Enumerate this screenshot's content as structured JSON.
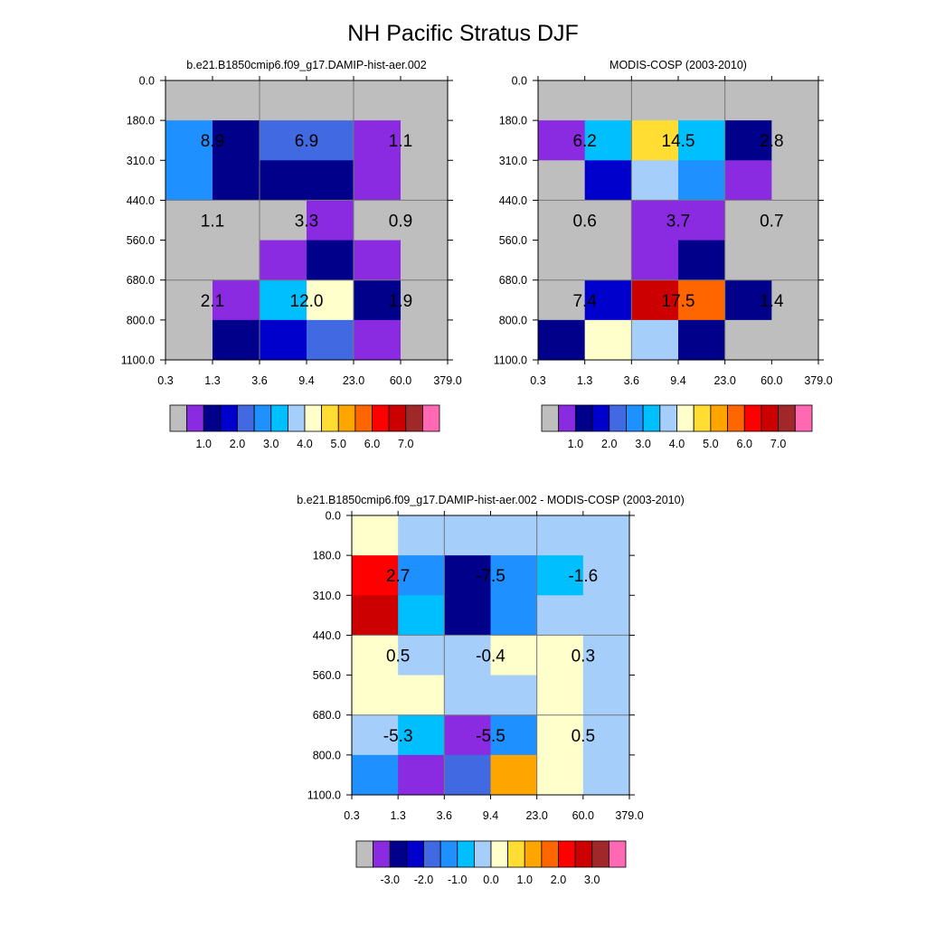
{
  "title": "NH Pacific Stratus DJF",
  "palette": {
    "gray": "#BEBEBE",
    "c_violet": "#8A2BE2",
    "c_navy": "#00008B",
    "c_blue": "#0000CD",
    "c_royal": "#4169E1",
    "c_dodger": "#1E90FF",
    "c_deepsky": "#00BFFF",
    "c_light": "#A6CEFB",
    "c_cream": "#FFFFCC",
    "c_gold": "#FFDD33",
    "c_orange": "#FFA500",
    "c_darkorange": "#FF6600",
    "c_red": "#FF0000",
    "c_darkred": "#CC0000",
    "c_brown": "#A02828",
    "c_pink": "#FF69B4",
    "grid_line": "#777777"
  },
  "chart_data": [
    {
      "type": "heatmap",
      "title": "b.e21.B1850cmip6.f09_g17.DAMIP-hist-aer.002",
      "x_ticks": [
        "0.3",
        "1.3",
        "3.6",
        "9.4",
        "23.0",
        "60.0",
        "379.0"
      ],
      "y_ticks": [
        "0.0",
        "180.0",
        "310.0",
        "440.0",
        "560.0",
        "680.0",
        "800.0",
        "1100.0"
      ],
      "cells": [
        [
          "gray",
          "gray",
          "gray",
          "gray",
          "gray",
          "gray"
        ],
        [
          "c_dodger",
          "c_navy",
          "c_royal",
          "c_royal",
          "c_violet",
          "gray"
        ],
        [
          "c_dodger",
          "c_navy",
          "c_navy",
          "c_navy",
          "c_violet",
          "gray"
        ],
        [
          "gray",
          "gray",
          "gray",
          "c_violet",
          "gray",
          "gray"
        ],
        [
          "gray",
          "gray",
          "c_violet",
          "c_navy",
          "c_violet",
          "gray"
        ],
        [
          "gray",
          "c_violet",
          "c_deepsky",
          "c_cream",
          "c_navy",
          "gray"
        ],
        [
          "gray",
          "c_navy",
          "c_blue",
          "c_royal",
          "c_violet",
          "gray"
        ]
      ],
      "annotations": [
        {
          "col": 1,
          "row": 1,
          "text": "8.9"
        },
        {
          "col": 3,
          "row": 1,
          "text": "6.9"
        },
        {
          "col": 5,
          "row": 1,
          "text": "1.1"
        },
        {
          "col": 1,
          "row": 3,
          "text": "1.1"
        },
        {
          "col": 3,
          "row": 3,
          "text": "3.3"
        },
        {
          "col": 5,
          "row": 3,
          "text": "0.9"
        },
        {
          "col": 1,
          "row": 5,
          "text": "2.1"
        },
        {
          "col": 3,
          "row": 5,
          "text": "12.0"
        },
        {
          "col": 5,
          "row": 5,
          "text": "1.9"
        }
      ],
      "colorbar": {
        "colors": [
          "gray",
          "c_violet",
          "c_navy",
          "c_blue",
          "c_royal",
          "c_dodger",
          "c_deepsky",
          "c_light",
          "c_cream",
          "c_gold",
          "c_orange",
          "c_darkorange",
          "c_red",
          "c_darkred",
          "c_brown",
          "c_pink"
        ],
        "labels": [
          {
            "boundary": 2,
            "text": "1.0"
          },
          {
            "boundary": 4,
            "text": "2.0"
          },
          {
            "boundary": 6,
            "text": "3.0"
          },
          {
            "boundary": 8,
            "text": "4.0"
          },
          {
            "boundary": 10,
            "text": "5.0"
          },
          {
            "boundary": 12,
            "text": "6.0"
          },
          {
            "boundary": 14,
            "text": "7.0"
          }
        ]
      }
    },
    {
      "type": "heatmap",
      "title": "MODIS-COSP (2003-2010)",
      "x_ticks": [
        "0.3",
        "1.3",
        "3.6",
        "9.4",
        "23.0",
        "60.0",
        "379.0"
      ],
      "y_ticks": [
        "0.0",
        "180.0",
        "310.0",
        "440.0",
        "560.0",
        "680.0",
        "800.0",
        "1100.0"
      ],
      "cells": [
        [
          "gray",
          "gray",
          "gray",
          "gray",
          "gray",
          "gray"
        ],
        [
          "c_violet",
          "c_deepsky",
          "c_gold",
          "c_deepsky",
          "c_navy",
          "gray"
        ],
        [
          "gray",
          "c_blue",
          "c_light",
          "c_dodger",
          "c_violet",
          "gray"
        ],
        [
          "gray",
          "gray",
          "c_violet",
          "c_violet",
          "gray",
          "gray"
        ],
        [
          "gray",
          "gray",
          "c_violet",
          "c_navy",
          "gray",
          "gray"
        ],
        [
          "gray",
          "c_blue",
          "c_darkred",
          "c_darkorange",
          "c_navy",
          "gray"
        ],
        [
          "c_navy",
          "c_cream",
          "c_light",
          "c_navy",
          "gray",
          "gray"
        ]
      ],
      "annotations": [
        {
          "col": 1,
          "row": 1,
          "text": "6.2"
        },
        {
          "col": 3,
          "row": 1,
          "text": "14.5"
        },
        {
          "col": 5,
          "row": 1,
          "text": "2.8"
        },
        {
          "col": 1,
          "row": 3,
          "text": "0.6"
        },
        {
          "col": 3,
          "row": 3,
          "text": "3.7"
        },
        {
          "col": 5,
          "row": 3,
          "text": "0.7"
        },
        {
          "col": 1,
          "row": 5,
          "text": "7.4"
        },
        {
          "col": 3,
          "row": 5,
          "text": "17.5"
        },
        {
          "col": 5,
          "row": 5,
          "text": "1.4"
        }
      ],
      "colorbar": {
        "colors": [
          "gray",
          "c_violet",
          "c_navy",
          "c_blue",
          "c_royal",
          "c_dodger",
          "c_deepsky",
          "c_light",
          "c_cream",
          "c_gold",
          "c_orange",
          "c_darkorange",
          "c_red",
          "c_darkred",
          "c_brown",
          "c_pink"
        ],
        "labels": [
          {
            "boundary": 2,
            "text": "1.0"
          },
          {
            "boundary": 4,
            "text": "2.0"
          },
          {
            "boundary": 6,
            "text": "3.0"
          },
          {
            "boundary": 8,
            "text": "4.0"
          },
          {
            "boundary": 10,
            "text": "5.0"
          },
          {
            "boundary": 12,
            "text": "6.0"
          },
          {
            "boundary": 14,
            "text": "7.0"
          }
        ]
      }
    },
    {
      "type": "heatmap",
      "title": "b.e21.B1850cmip6.f09_g17.DAMIP-hist-aer.002 - MODIS-COSP (2003-2010)",
      "x_ticks": [
        "0.3",
        "1.3",
        "3.6",
        "9.4",
        "23.0",
        "60.0",
        "379.0"
      ],
      "y_ticks": [
        "0.0",
        "180.0",
        "310.0",
        "440.0",
        "560.0",
        "680.0",
        "800.0",
        "1100.0"
      ],
      "cells": [
        [
          "c_cream",
          "c_light",
          "c_light",
          "c_light",
          "c_light",
          "c_light"
        ],
        [
          "c_red",
          "c_dodger",
          "c_navy",
          "c_dodger",
          "c_deepsky",
          "c_light"
        ],
        [
          "c_darkred",
          "c_deepsky",
          "c_navy",
          "c_dodger",
          "c_light",
          "c_light"
        ],
        [
          "c_cream",
          "c_light",
          "c_light",
          "c_cream",
          "c_cream",
          "c_light"
        ],
        [
          "c_cream",
          "c_cream",
          "c_light",
          "c_light",
          "c_cream",
          "c_light"
        ],
        [
          "c_light",
          "c_deepsky",
          "c_violet",
          "c_dodger",
          "c_cream",
          "c_light"
        ],
        [
          "c_dodger",
          "c_violet",
          "c_royal",
          "c_orange",
          "c_cream",
          "c_light"
        ]
      ],
      "annotations": [
        {
          "col": 1,
          "row": 1,
          "text": "2.7"
        },
        {
          "col": 3,
          "row": 1,
          "text": "-7.5"
        },
        {
          "col": 5,
          "row": 1,
          "text": "-1.6"
        },
        {
          "col": 1,
          "row": 3,
          "text": "0.5"
        },
        {
          "col": 3,
          "row": 3,
          "text": "-0.4"
        },
        {
          "col": 5,
          "row": 3,
          "text": "0.3"
        },
        {
          "col": 1,
          "row": 5,
          "text": "-5.3"
        },
        {
          "col": 3,
          "row": 5,
          "text": "-5.5"
        },
        {
          "col": 5,
          "row": 5,
          "text": "0.5"
        }
      ],
      "colorbar": {
        "colors": [
          "gray",
          "c_violet",
          "c_navy",
          "c_blue",
          "c_royal",
          "c_dodger",
          "c_deepsky",
          "c_light",
          "c_cream",
          "c_gold",
          "c_orange",
          "c_darkorange",
          "c_red",
          "c_darkred",
          "c_brown",
          "c_pink"
        ],
        "labels": [
          {
            "boundary": 2,
            "text": "-3.0"
          },
          {
            "boundary": 4,
            "text": "-2.0"
          },
          {
            "boundary": 6,
            "text": "-1.0"
          },
          {
            "boundary": 8,
            "text": "0.0"
          },
          {
            "boundary": 10,
            "text": "1.0"
          },
          {
            "boundary": 12,
            "text": "2.0"
          },
          {
            "boundary": 14,
            "text": "3.0"
          }
        ]
      }
    }
  ]
}
